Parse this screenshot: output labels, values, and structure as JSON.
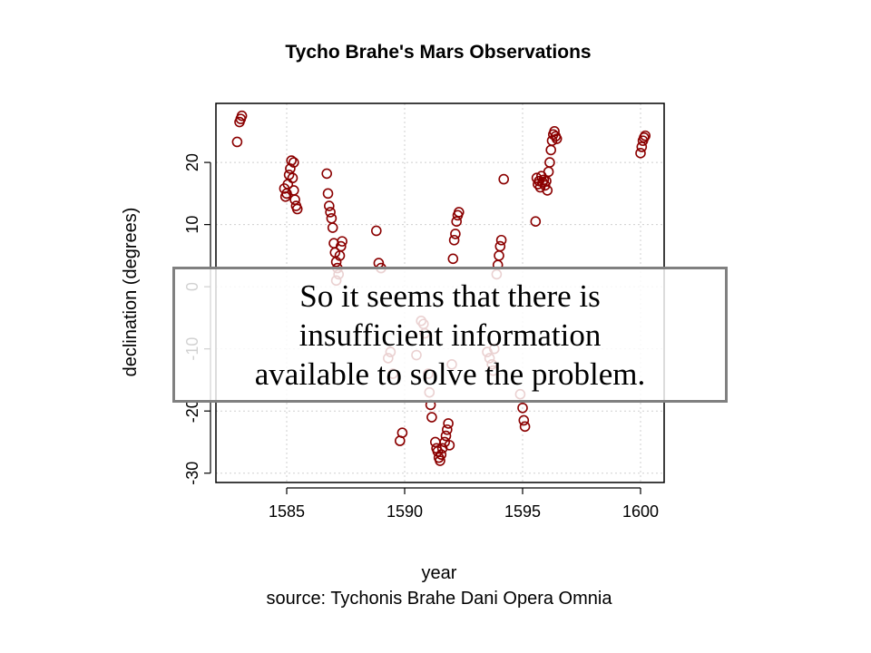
{
  "slide": {
    "overlay_lines": [
      "So it seems that there is",
      "insufficient information",
      "available to solve the problem."
    ]
  },
  "chart_data": {
    "type": "scatter",
    "title": "Tycho Brahe's Mars Observations",
    "xlabel": "year",
    "ylabel": "declination (degrees)",
    "caption": "source: Tychonis Brahe Dani Opera Omnia",
    "xlim": [
      1582.0,
      1601.0
    ],
    "ylim": [
      -31.5,
      29.5
    ],
    "xticks": [
      1585,
      1590,
      1595,
      1600
    ],
    "yticks": [
      -30,
      -20,
      -10,
      0,
      10,
      20
    ],
    "grid": true,
    "marker": "open-circle",
    "color": "#8b0000",
    "points": [
      [
        1582.9,
        23.3
      ],
      [
        1583.0,
        26.5
      ],
      [
        1583.05,
        27.0
      ],
      [
        1583.1,
        27.5
      ],
      [
        1584.9,
        15.8
      ],
      [
        1584.95,
        14.5
      ],
      [
        1585.0,
        15.0
      ],
      [
        1585.05,
        16.5
      ],
      [
        1585.1,
        18.0
      ],
      [
        1585.15,
        19.0
      ],
      [
        1585.2,
        20.3
      ],
      [
        1585.25,
        17.5
      ],
      [
        1585.3,
        15.5
      ],
      [
        1585.35,
        14.0
      ],
      [
        1585.4,
        13.0
      ],
      [
        1585.45,
        12.5
      ],
      [
        1585.3,
        20.0
      ],
      [
        1586.7,
        18.2
      ],
      [
        1586.75,
        15.0
      ],
      [
        1586.8,
        13.0
      ],
      [
        1586.85,
        12.0
      ],
      [
        1586.9,
        11.0
      ],
      [
        1586.95,
        9.5
      ],
      [
        1587.0,
        7.0
      ],
      [
        1587.05,
        5.5
      ],
      [
        1587.1,
        4.0
      ],
      [
        1587.15,
        3.0
      ],
      [
        1587.2,
        2.0
      ],
      [
        1587.25,
        5.0
      ],
      [
        1587.3,
        6.5
      ],
      [
        1587.35,
        7.3
      ],
      [
        1587.1,
        1.0
      ],
      [
        1588.8,
        9.0
      ],
      [
        1588.9,
        3.8
      ],
      [
        1589.0,
        3.0
      ],
      [
        1589.3,
        -11.5
      ],
      [
        1589.4,
        -10.5
      ],
      [
        1589.8,
        -24.8
      ],
      [
        1589.9,
        -23.5
      ],
      [
        1589.5,
        -14.0
      ],
      [
        1590.5,
        -11.0
      ],
      [
        1590.7,
        -5.5
      ],
      [
        1590.8,
        -6.0
      ],
      [
        1590.85,
        -7.5
      ],
      [
        1591.0,
        -14.0
      ],
      [
        1591.05,
        -17.0
      ],
      [
        1591.1,
        -19.0
      ],
      [
        1591.15,
        -21.0
      ],
      [
        1591.3,
        -25.0
      ],
      [
        1591.35,
        -26.0
      ],
      [
        1591.4,
        -26.5
      ],
      [
        1591.45,
        -27.5
      ],
      [
        1591.5,
        -28.0
      ],
      [
        1591.55,
        -27.0
      ],
      [
        1591.6,
        -26.0
      ],
      [
        1591.7,
        -25.0
      ],
      [
        1591.75,
        -24.0
      ],
      [
        1591.8,
        -23.0
      ],
      [
        1591.85,
        -22.0
      ],
      [
        1591.9,
        -25.5
      ],
      [
        1592.0,
        -12.5
      ],
      [
        1592.05,
        4.5
      ],
      [
        1592.1,
        7.5
      ],
      [
        1592.15,
        8.5
      ],
      [
        1592.2,
        10.5
      ],
      [
        1592.25,
        11.5
      ],
      [
        1592.3,
        12.0
      ],
      [
        1593.5,
        -10.5
      ],
      [
        1593.6,
        -11.5
      ],
      [
        1593.7,
        -12.5
      ],
      [
        1593.75,
        -13.5
      ],
      [
        1593.8,
        -10.0
      ],
      [
        1593.9,
        2.0
      ],
      [
        1593.95,
        3.5
      ],
      [
        1594.0,
        5.0
      ],
      [
        1594.05,
        6.5
      ],
      [
        1594.1,
        7.5
      ],
      [
        1594.2,
        17.3
      ],
      [
        1594.9,
        -17.3
      ],
      [
        1595.0,
        -19.5
      ],
      [
        1595.05,
        -21.5
      ],
      [
        1595.1,
        -22.5
      ],
      [
        1595.55,
        10.5
      ],
      [
        1595.6,
        17.5
      ],
      [
        1595.65,
        16.5
      ],
      [
        1595.7,
        17.0
      ],
      [
        1595.75,
        16.0
      ],
      [
        1595.8,
        17.8
      ],
      [
        1595.85,
        16.8
      ],
      [
        1595.9,
        17.2
      ],
      [
        1595.95,
        16.3
      ],
      [
        1596.0,
        17.0
      ],
      [
        1596.05,
        15.5
      ],
      [
        1596.1,
        18.5
      ],
      [
        1596.15,
        20.0
      ],
      [
        1596.2,
        22.0
      ],
      [
        1596.25,
        23.5
      ],
      [
        1596.3,
        24.5
      ],
      [
        1596.35,
        25.0
      ],
      [
        1596.4,
        24.2
      ],
      [
        1596.45,
        23.8
      ],
      [
        1600.0,
        21.5
      ],
      [
        1600.05,
        22.5
      ],
      [
        1600.1,
        23.5
      ],
      [
        1600.15,
        24.0
      ],
      [
        1600.2,
        24.3
      ]
    ]
  }
}
